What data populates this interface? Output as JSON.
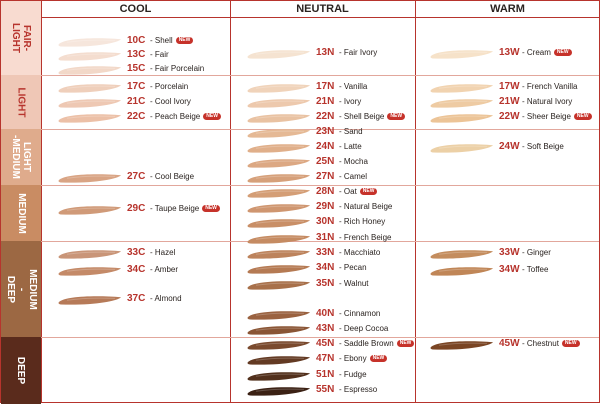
{
  "columns": [
    {
      "key": "cool",
      "label": "COOL"
    },
    {
      "key": "neutral",
      "label": "NEUTRAL"
    },
    {
      "key": "warm",
      "label": "WARM"
    }
  ],
  "new_label": "NEW",
  "rows": [
    {
      "key": "fair-light",
      "label": "FAIR-\nLIGHT",
      "bg": "#f8dbd0",
      "fg": "#b7342d"
    },
    {
      "key": "light",
      "label": "LIGHT",
      "bg": "#efc7b6",
      "fg": "#b7342d"
    },
    {
      "key": "light-medium",
      "label": "LIGHT\n-MEDIUM",
      "bg": "#dfab8c",
      "fg": "#ffffff"
    },
    {
      "key": "medium",
      "label": "MEDIUM",
      "bg": "#c98c63",
      "fg": "#ffffff"
    },
    {
      "key": "medium-deep",
      "label": "MEDIUM\n-\nDEEP",
      "bg": "#9c6843",
      "fg": "#ffffff"
    },
    {
      "key": "deep",
      "label": "DEEP",
      "bg": "#5a2b1c",
      "fg": "#ffffff"
    }
  ],
  "shades": {
    "cool": [
      {
        "code": "10C",
        "name": "Shell",
        "isNew": true,
        "color": "#f6e6dc"
      },
      {
        "code": "13C",
        "name": "Fair",
        "isNew": false,
        "color": "#f4ddcf"
      },
      {
        "code": "15C",
        "name": "Fair Porcelain",
        "isNew": false,
        "color": "#f2d8c8"
      },
      {
        "code": "17C",
        "name": "Porcelain",
        "isNew": false,
        "color": "#efcfbb"
      },
      {
        "code": "21C",
        "name": "Cool Ivory",
        "isNew": false,
        "color": "#eec8b3"
      },
      {
        "code": "22C",
        "name": "Peach Beige",
        "isNew": true,
        "color": "#ecc0a7"
      },
      {
        "code": "27C",
        "name": "Cool Beige",
        "isNew": false,
        "color": "#d9a484"
      },
      {
        "code": "29C",
        "name": "Taupe Beige",
        "isNew": true,
        "color": "#d09a78"
      },
      {
        "code": "33C",
        "name": "Hazel",
        "isNew": false,
        "color": "#c99578"
      },
      {
        "code": "34C",
        "name": "Amber",
        "isNew": false,
        "color": "#c48a68"
      },
      {
        "code": "37C",
        "name": "Almond",
        "isNew": false,
        "color": "#b67a58"
      }
    ],
    "neutral": [
      {
        "code": "13N",
        "name": "Fair Ivory",
        "isNew": false,
        "color": "#f5e3d1"
      },
      {
        "code": "17N",
        "name": "Vanilla",
        "isNew": false,
        "color": "#f0d3ba"
      },
      {
        "code": "21N",
        "name": "Ivory",
        "isNew": false,
        "color": "#edc9ad"
      },
      {
        "code": "22N",
        "name": "Shell Beige",
        "isNew": true,
        "color": "#e9c2a2"
      },
      {
        "code": "23N",
        "name": "Sand",
        "isNew": false,
        "color": "#e5b995"
      },
      {
        "code": "24N",
        "name": "Latte",
        "isNew": false,
        "color": "#e0af8a"
      },
      {
        "code": "25N",
        "name": "Mocha",
        "isNew": false,
        "color": "#dca883"
      },
      {
        "code": "27N",
        "name": "Camel",
        "isNew": false,
        "color": "#d6a07a"
      },
      {
        "code": "28N",
        "name": "Oat",
        "isNew": true,
        "color": "#d49e76"
      },
      {
        "code": "29N",
        "name": "Natural Beige",
        "isNew": false,
        "color": "#cf9670"
      },
      {
        "code": "30N",
        "name": "Rich Honey",
        "isNew": false,
        "color": "#c98f67"
      },
      {
        "code": "31N",
        "name": "French Beige",
        "isNew": false,
        "color": "#c58b62"
      },
      {
        "code": "33N",
        "name": "Macchiato",
        "isNew": false,
        "color": "#bd835c"
      },
      {
        "code": "34N",
        "name": "Pecan",
        "isNew": false,
        "color": "#b57a53"
      },
      {
        "code": "35N",
        "name": "Walnut",
        "isNew": false,
        "color": "#a8704a"
      },
      {
        "code": "40N",
        "name": "Cinnamon",
        "isNew": false,
        "color": "#9a6240"
      },
      {
        "code": "43N",
        "name": "Deep Cocoa",
        "isNew": false,
        "color": "#8a5535"
      },
      {
        "code": "45N",
        "name": "Saddle Brown",
        "isNew": true,
        "color": "#7a4a2e"
      },
      {
        "code": "47N",
        "name": "Ebony",
        "isNew": true,
        "color": "#633a23"
      },
      {
        "code": "51N",
        "name": "Fudge",
        "isNew": false,
        "color": "#52301c"
      },
      {
        "code": "55N",
        "name": "Espresso",
        "isNew": false,
        "color": "#3b2114"
      }
    ],
    "warm": [
      {
        "code": "13W",
        "name": "Cream",
        "isNew": true,
        "color": "#f6e2c9"
      },
      {
        "code": "17W",
        "name": "French Vanilla",
        "isNew": false,
        "color": "#f1d3b0"
      },
      {
        "code": "21W",
        "name": "Natural Ivory",
        "isNew": false,
        "color": "#eecba3"
      },
      {
        "code": "22W",
        "name": "Sheer Beige",
        "isNew": true,
        "color": "#ecc497"
      },
      {
        "code": "24W",
        "name": "Soft Beige",
        "isNew": false,
        "color": "#ecd0a6"
      },
      {
        "code": "33W",
        "name": "Ginger",
        "isNew": false,
        "color": "#c48d5e"
      },
      {
        "code": "34W",
        "name": "Toffee",
        "isNew": false,
        "color": "#c08657"
      },
      {
        "code": "45W",
        "name": "Chestnut",
        "isNew": true,
        "color": "#7a4524"
      }
    ]
  }
}
